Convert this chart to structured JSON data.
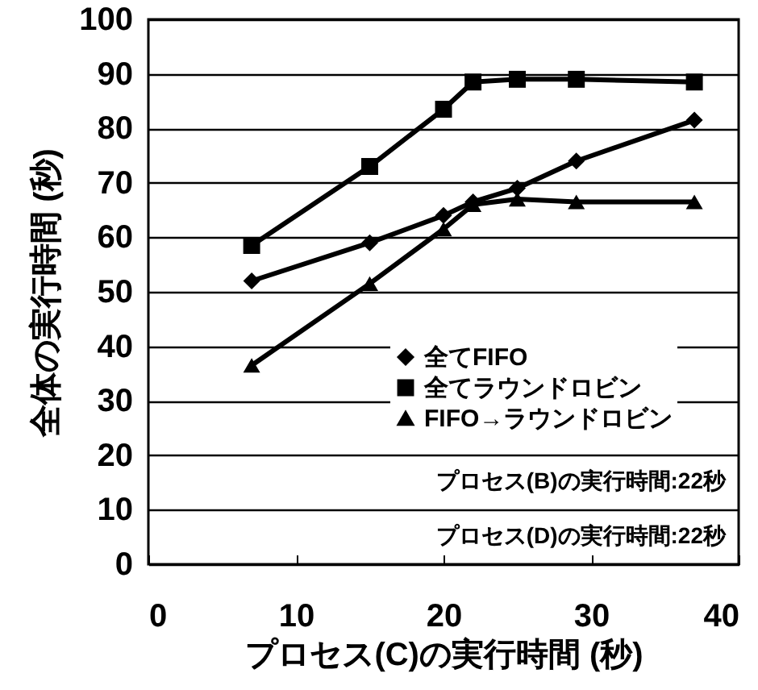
{
  "chart_data": {
    "type": "line",
    "xlabel": "プロセス(C)の実行時間 (秒)",
    "ylabel": "全体の実行時間 (秒)",
    "x": [
      7,
      15,
      20,
      22,
      25,
      29,
      37
    ],
    "series": [
      {
        "name": "全てFIFO",
        "color": "#000000",
        "marker": "diamond",
        "values": [
          52,
          59,
          64,
          66.5,
          69,
          74,
          81.5
        ]
      },
      {
        "name": "全てラウンドロビン",
        "color": "#000000",
        "marker": "square",
        "values": [
          58.5,
          73,
          83.5,
          88.5,
          89,
          89,
          88.5
        ]
      },
      {
        "name": "FIFO→ラウンドロビン",
        "color": "#000000",
        "marker": "triangle",
        "values": [
          36.5,
          51.5,
          61.5,
          66,
          67,
          66.5,
          66.5
        ]
      }
    ],
    "xlim": [
      0,
      40
    ],
    "xticks": [
      0,
      10,
      20,
      30,
      40
    ],
    "ylim": [
      0,
      100
    ],
    "yticks": [
      0,
      10,
      20,
      30,
      40,
      50,
      60,
      70,
      80,
      90,
      100
    ],
    "grid": "y",
    "legend": "bottom right",
    "line_style": "solid",
    "annotations": [
      "プロセス(B)の実行時間:22秒",
      "プロセス(D)の実行時間:22秒"
    ]
  }
}
